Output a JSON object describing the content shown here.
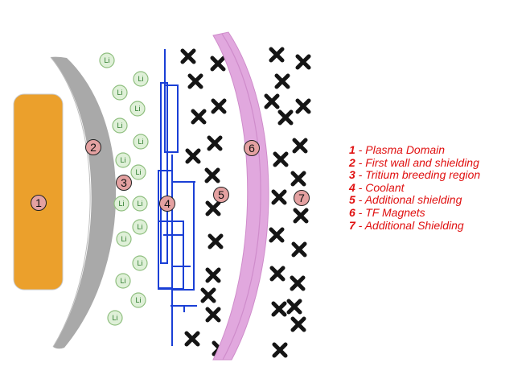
{
  "colors": {
    "plasma": "#eba02c",
    "first_wall": "#a9a9a9",
    "li_fill": "#dff0d8",
    "li_stroke": "#8fbf7f",
    "coolant": "#1a3fd6",
    "magnet": "#e1a8de",
    "magnet_stroke": "#cf8ccb",
    "cross": "#151515",
    "label_fill": "#e4a1a1",
    "legend_text": "#e01010"
  },
  "diagram": {
    "lithium_symbol": "Li",
    "regions": [
      {
        "num": "1",
        "name": "Plasma Domain"
      },
      {
        "num": "2",
        "name": "First wall and shielding"
      },
      {
        "num": "3",
        "name": "Tritium breeding region"
      },
      {
        "num": "4",
        "name": "Coolant"
      },
      {
        "num": "5",
        "name": "Additional shielding"
      },
      {
        "num": "6",
        "name": "TF Magnets"
      },
      {
        "num": "7",
        "name": "Additional Shielding"
      }
    ]
  },
  "legend": {
    "separator": " - ",
    "items": [
      {
        "num": "1",
        "text": "Plasma Domain"
      },
      {
        "num": "2",
        "text": "First wall and shielding"
      },
      {
        "num": "3",
        "text": "Tritium breeding region"
      },
      {
        "num": "4",
        "text": "Coolant"
      },
      {
        "num": "5",
        "text": "Additional shielding"
      },
      {
        "num": "6",
        "text": "TF Magnets"
      },
      {
        "num": "7",
        "text": "Additional Shielding"
      }
    ]
  }
}
